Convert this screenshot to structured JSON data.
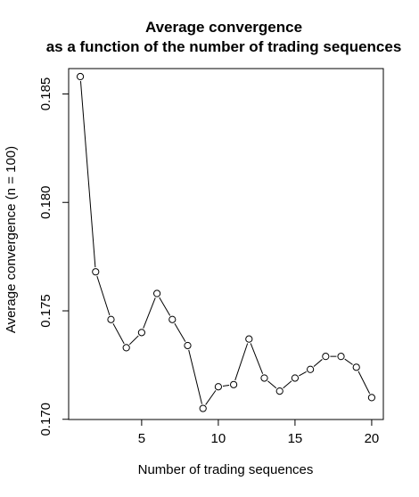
{
  "chart_data": {
    "type": "line",
    "title_line1": "Average convergence",
    "title_line2": "as a function of the number of trading sequences",
    "xlabel": "Number of trading sequences",
    "ylabel": "Average convergence (n = 100)",
    "x": [
      1,
      2,
      3,
      4,
      5,
      6,
      7,
      8,
      9,
      10,
      11,
      12,
      13,
      14,
      15,
      16,
      17,
      18,
      19,
      20
    ],
    "y": [
      0.1858,
      0.1768,
      0.1746,
      0.1733,
      0.174,
      0.1758,
      0.1746,
      0.1734,
      0.1705,
      0.1715,
      0.1716,
      0.1737,
      0.1719,
      0.1713,
      0.1719,
      0.1723,
      0.1729,
      0.1729,
      0.1724,
      0.171
    ],
    "xlim": [
      0.24,
      20.76
    ],
    "ylim": [
      0.16999,
      0.18617
    ],
    "xticks": [
      5,
      10,
      15,
      20
    ],
    "yticks": [
      0.17,
      0.175,
      0.18,
      0.185
    ],
    "xtick_labels": [
      "5",
      "10",
      "15",
      "20"
    ],
    "ytick_labels": [
      "0.170",
      "0.175",
      "0.180",
      "0.185"
    ],
    "marker": "open-circle",
    "grid": false,
    "legend": "none"
  }
}
